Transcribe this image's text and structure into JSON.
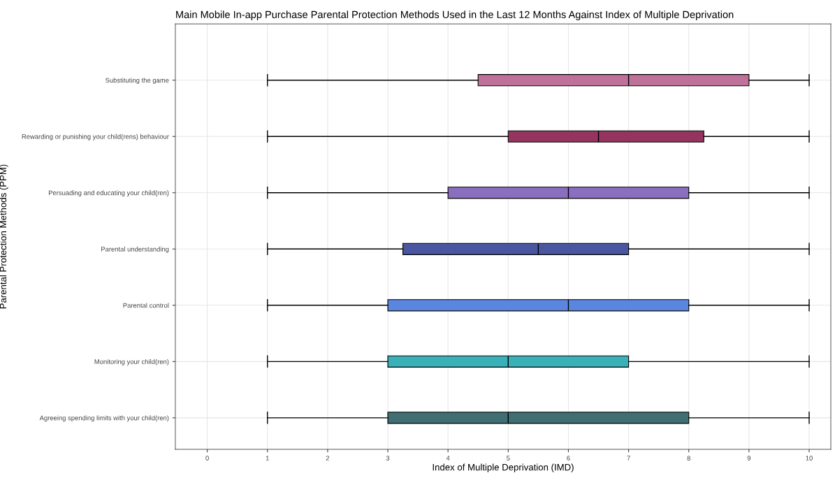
{
  "chart_data": {
    "type": "box",
    "orientation": "horizontal",
    "title": "Main Mobile In-app Purchase Parental Protection Methods Used in the Last 12 Months Against Index of Multiple Deprivation",
    "xlabel": "Index of Multiple Deprivation (IMD)",
    "ylabel": "Parental Protection Methods (PPM)",
    "categories": [
      "Substituting the game",
      "Rewarding or punishing your child(rens) behaviour",
      "Persuading and educating your child(ren)",
      "Parental understanding",
      "Parental control",
      "Monitoring your child(ren)",
      "Agreeing spending limits with your child(ren)"
    ],
    "colors": [
      "#c0719a",
      "#94345f",
      "#8a6fc1",
      "#4a56a0",
      "#5b86e0",
      "#3ab0b8",
      "#406e72"
    ],
    "boxes": [
      {
        "low": 1,
        "q1": 4.5,
        "median": 7,
        "q3": 9,
        "high": 10
      },
      {
        "low": 1,
        "q1": 5,
        "median": 6.5,
        "q3": 8.25,
        "high": 10
      },
      {
        "low": 1,
        "q1": 4,
        "median": 6,
        "q3": 8,
        "high": 10
      },
      {
        "low": 1,
        "q1": 3.25,
        "median": 5.5,
        "q3": 7,
        "high": 10
      },
      {
        "low": 1,
        "q1": 3,
        "median": 6,
        "q3": 8,
        "high": 10
      },
      {
        "low": 1,
        "q1": 3,
        "median": 5,
        "q3": 7,
        "high": 10
      },
      {
        "low": 1,
        "q1": 3,
        "median": 5,
        "q3": 8,
        "high": 10
      }
    ],
    "xlim": [
      -0.53,
      10.36
    ],
    "xticks": [
      0,
      1,
      2,
      3,
      4,
      5,
      6,
      7,
      8,
      9,
      10
    ],
    "grid": true
  }
}
